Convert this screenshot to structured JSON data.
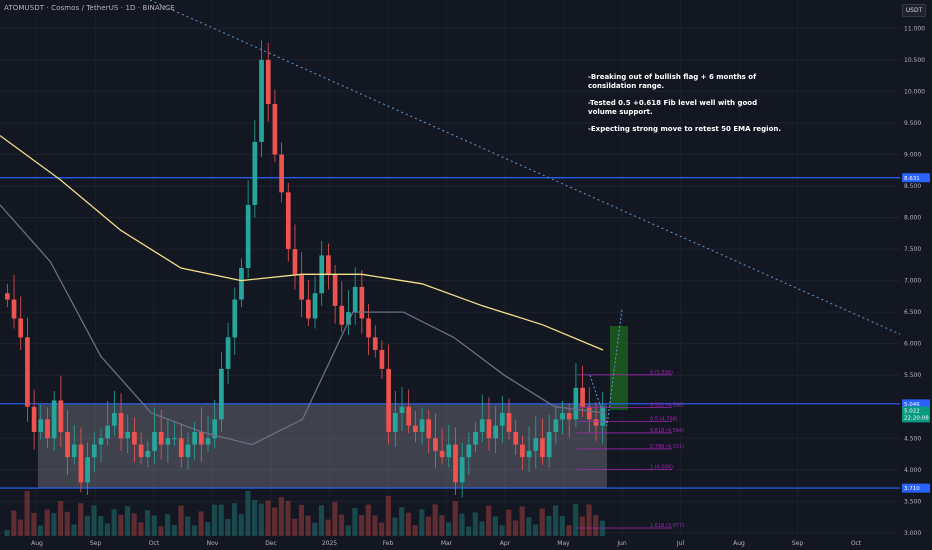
{
  "header": {
    "symbol": "ATOMUSDT · Cosmos / TetherUS · 1D · BINANCE",
    "currency": "USDT"
  },
  "annotation": {
    "line1": "-Breaking out of bullish flag + 6 months of consildation range.",
    "line2": "-Tested 0.5 +0.618 Fib level well with good volume support.",
    "line3": "-Expecting strong move to retest 50 EMA region."
  },
  "colors": {
    "background": "#131722",
    "up": "#26a69a",
    "down": "#ef5350",
    "ema_slow": "#f3e08a",
    "ema_fast": "#6b6f86",
    "level_line": "#2962ff",
    "fib": "#9c27b0",
    "range_box": "#b2b5be",
    "target_box": "#1b5e20",
    "trendline": "#5b9bd5"
  },
  "chart_data": {
    "type": "candlestick",
    "y_axis": {
      "ticks": [
        "11.000",
        "10.500",
        "10.000",
        "9.500",
        "9.000",
        "8.500",
        "8.000",
        "7.500",
        "7.000",
        "6.500",
        "6.000",
        "5.500",
        "4.500",
        "4.000",
        "3.500",
        "3.000"
      ],
      "ylim": [
        2.95,
        11.45
      ]
    },
    "x_axis": {
      "ticks": [
        "Aug",
        "Sep",
        "Oct",
        "Nov",
        "Dec",
        "2025",
        "Feb",
        "Mar",
        "Apr",
        "May",
        "Jun",
        "Jul",
        "Aug",
        "Sep",
        "Oct"
      ]
    },
    "price_labels": {
      "upper_resistance": "8.631",
      "current_level": "5.046",
      "last_price": "5.022",
      "countdown": "22:20:08",
      "range_bottom": "3.710"
    },
    "levels": {
      "upper_resistance": 8.631,
      "range_top": 5.046,
      "range_bottom": 3.71
    },
    "fib_levels": [
      {
        "label": "0 (5.506)",
        "value": 5.506
      },
      {
        "label": "0.382 (4.988)",
        "value": 4.988
      },
      {
        "label": "0.5 (4.768)",
        "value": 4.768
      },
      {
        "label": "0.618 (4.584)",
        "value": 4.584
      },
      {
        "label": "0.786 (4.331)",
        "value": 4.331
      },
      {
        "label": "1 (4.006)",
        "value": 4.006
      },
      {
        "label": "1.618 (3.077)",
        "value": 3.077
      }
    ],
    "trade_setup": {
      "entry": 4.95,
      "target": 6.28
    },
    "close_series": [
      6.7,
      6.4,
      6.1,
      5.0,
      4.6,
      4.8,
      4.5,
      5.1,
      4.6,
      4.2,
      4.4,
      3.8,
      4.2,
      4.4,
      4.5,
      4.7,
      4.9,
      4.5,
      4.6,
      4.4,
      4.2,
      4.3,
      4.6,
      4.4,
      4.5,
      4.5,
      4.2,
      4.4,
      4.6,
      4.4,
      4.5,
      4.8,
      5.6,
      6.1,
      6.7,
      7.2,
      8.2,
      9.2,
      10.5,
      9.8,
      9.0,
      8.4,
      7.5,
      7.1,
      6.7,
      6.4,
      6.8,
      7.4,
      7.1,
      6.6,
      6.3,
      6.5,
      6.9,
      6.4,
      6.1,
      5.9,
      5.6,
      4.6,
      4.9,
      5.0,
      4.7,
      4.6,
      4.8,
      4.5,
      4.3,
      4.2,
      4.4,
      3.8,
      4.2,
      4.4,
      4.6,
      4.8,
      4.5,
      4.7,
      4.9,
      4.6,
      4.4,
      4.2,
      4.3,
      4.5,
      4.2,
      4.6,
      4.8,
      4.9,
      4.8,
      5.3,
      5.0,
      4.8,
      4.7,
      5.0
    ],
    "ema_slow_series": [
      9.3,
      8.6,
      7.8,
      7.2,
      7.0,
      7.1,
      7.1,
      6.95,
      6.6,
      6.3,
      5.9
    ],
    "ema_fast_series": [
      8.2,
      7.3,
      5.8,
      4.9,
      4.6,
      4.4,
      4.8,
      6.5,
      6.5,
      6.1,
      5.5,
      5.0,
      4.9
    ]
  }
}
